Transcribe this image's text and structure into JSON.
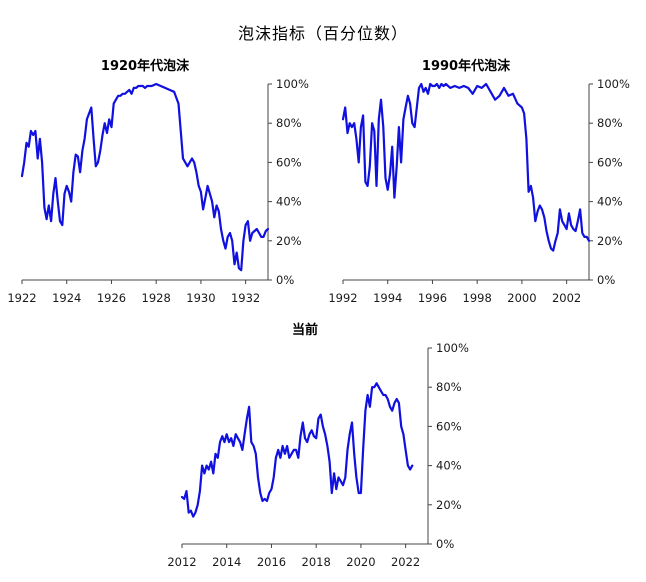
{
  "title": "泡沫指标（百分位数）",
  "colors": {
    "line": "#1010e0",
    "axis": "#444444"
  },
  "chart_data": [
    {
      "type": "line",
      "title": "1920年代泡沫",
      "xlim": [
        1922,
        1933
      ],
      "ylim": [
        0,
        100
      ],
      "x_ticks": [
        1922,
        1924,
        1926,
        1928,
        1930,
        1932
      ],
      "y_ticks": [
        0,
        20,
        40,
        60,
        80,
        100
      ],
      "y_tick_labels": [
        "0%",
        "20%",
        "40%",
        "60%",
        "80%",
        "100%"
      ],
      "series": [
        {
          "x": [
            1922.0,
            1922.1,
            1922.2,
            1922.3,
            1922.4,
            1922.5,
            1922.6,
            1922.7,
            1922.8,
            1922.9,
            1923.0,
            1923.1,
            1923.2,
            1923.3,
            1923.4,
            1923.5,
            1923.6,
            1923.7,
            1923.8,
            1923.9,
            1924.0,
            1924.1,
            1924.2,
            1924.3,
            1924.4,
            1924.5,
            1924.6,
            1924.7,
            1924.8,
            1924.9,
            1925.0,
            1925.1,
            1925.2,
            1925.3,
            1925.4,
            1925.5,
            1925.6,
            1925.7,
            1925.8,
            1925.9,
            1926.0,
            1926.1,
            1926.2,
            1926.3,
            1926.4,
            1926.5,
            1926.6,
            1926.7,
            1926.8,
            1926.9,
            1927.0,
            1927.1,
            1927.2,
            1927.3,
            1927.4,
            1927.5,
            1927.6,
            1927.8,
            1928.0,
            1928.2,
            1928.4,
            1928.6,
            1928.8,
            1929.0,
            1929.2,
            1929.4,
            1929.6,
            1929.7,
            1929.8,
            1929.9,
            1930.0,
            1930.1,
            1930.2,
            1930.3,
            1930.4,
            1930.5,
            1930.6,
            1930.7,
            1930.8,
            1930.9,
            1931.0,
            1931.1,
            1931.2,
            1931.3,
            1931.4,
            1931.5,
            1931.6,
            1931.7,
            1931.8,
            1931.9,
            1932.0,
            1932.1,
            1932.2,
            1932.3,
            1932.4,
            1932.5,
            1932.6,
            1932.7,
            1932.8,
            1932.9,
            1933.0
          ],
          "y": [
            53,
            60,
            70,
            68,
            76,
            74,
            76,
            62,
            72,
            60,
            37,
            31,
            38,
            30,
            44,
            52,
            40,
            30,
            28,
            44,
            48,
            45,
            40,
            55,
            64,
            63,
            55,
            66,
            72,
            82,
            85,
            88,
            72,
            58,
            60,
            66,
            74,
            80,
            75,
            82,
            78,
            90,
            92,
            94,
            94,
            95,
            95,
            96,
            97,
            95,
            98,
            98,
            99,
            99,
            99,
            98,
            99,
            99,
            100,
            99,
            98,
            97,
            96,
            90,
            62,
            58,
            62,
            60,
            55,
            48,
            45,
            36,
            42,
            48,
            44,
            40,
            32,
            38,
            35,
            26,
            20,
            16,
            22,
            24,
            20,
            8,
            14,
            6,
            5,
            20,
            28,
            30,
            20,
            24,
            25,
            26,
            24,
            22,
            22,
            25,
            26
          ],
          "name": ""
        }
      ]
    },
    {
      "type": "line",
      "title": "1990年代泡沫",
      "xlim": [
        1992,
        2003
      ],
      "ylim": [
        0,
        100
      ],
      "x_ticks": [
        1992,
        1994,
        1996,
        1998,
        2000,
        2002
      ],
      "y_ticks": [
        0,
        20,
        40,
        60,
        80,
        100
      ],
      "y_tick_labels": [
        "0%",
        "20%",
        "40%",
        "60%",
        "80%",
        "100%"
      ],
      "series": [
        {
          "x": [
            1992.0,
            1992.1,
            1992.2,
            1992.3,
            1992.4,
            1992.5,
            1992.6,
            1992.7,
            1992.8,
            1992.9,
            1993.0,
            1993.1,
            1993.2,
            1993.3,
            1993.4,
            1993.5,
            1993.6,
            1993.7,
            1993.8,
            1993.9,
            1994.0,
            1994.1,
            1994.2,
            1994.3,
            1994.4,
            1994.5,
            1994.6,
            1994.7,
            1994.8,
            1994.9,
            1995.0,
            1995.1,
            1995.2,
            1995.3,
            1995.4,
            1995.5,
            1995.6,
            1995.7,
            1995.8,
            1995.9,
            1996.0,
            1996.1,
            1996.2,
            1996.3,
            1996.4,
            1996.5,
            1996.6,
            1996.8,
            1997.0,
            1997.2,
            1997.4,
            1997.6,
            1997.8,
            1998.0,
            1998.2,
            1998.4,
            1998.6,
            1998.8,
            1999.0,
            1999.2,
            1999.4,
            1999.6,
            1999.8,
            2000.0,
            2000.1,
            2000.2,
            2000.3,
            2000.4,
            2000.5,
            2000.6,
            2000.7,
            2000.8,
            2000.9,
            2001.0,
            2001.1,
            2001.2,
            2001.3,
            2001.4,
            2001.5,
            2001.6,
            2001.7,
            2001.8,
            2001.9,
            2002.0,
            2002.1,
            2002.2,
            2002.3,
            2002.4,
            2002.5,
            2002.6,
            2002.7,
            2002.8,
            2002.9,
            2003.0
          ],
          "y": [
            82,
            88,
            75,
            80,
            78,
            80,
            72,
            60,
            78,
            84,
            50,
            48,
            58,
            80,
            76,
            48,
            82,
            92,
            78,
            52,
            46,
            54,
            68,
            42,
            58,
            78,
            60,
            82,
            88,
            94,
            90,
            80,
            78,
            88,
            98,
            100,
            96,
            98,
            95,
            100,
            99,
            99,
            100,
            98,
            100,
            99,
            100,
            98,
            99,
            98,
            99,
            98,
            95,
            99,
            98,
            100,
            96,
            92,
            94,
            98,
            94,
            95,
            90,
            88,
            85,
            72,
            45,
            48,
            42,
            30,
            35,
            38,
            36,
            32,
            25,
            20,
            16,
            15,
            20,
            24,
            36,
            30,
            28,
            26,
            34,
            28,
            26,
            25,
            30,
            36,
            24,
            22,
            22,
            20
          ],
          "name": ""
        }
      ]
    },
    {
      "type": "line",
      "title": "当前",
      "xlim": [
        2012,
        2023
      ],
      "ylim": [
        0,
        100
      ],
      "x_ticks": [
        2012,
        2014,
        2016,
        2018,
        2020,
        2022
      ],
      "y_ticks": [
        0,
        20,
        40,
        60,
        80,
        100
      ],
      "y_tick_labels": [
        "0%",
        "20%",
        "40%",
        "60%",
        "80%",
        "100%"
      ],
      "series": [
        {
          "x": [
            2012.0,
            2012.1,
            2012.2,
            2012.3,
            2012.4,
            2012.5,
            2012.6,
            2012.7,
            2012.8,
            2012.9,
            2013.0,
            2013.1,
            2013.2,
            2013.3,
            2013.4,
            2013.5,
            2013.6,
            2013.7,
            2013.8,
            2013.9,
            2014.0,
            2014.1,
            2014.2,
            2014.3,
            2014.4,
            2014.5,
            2014.6,
            2014.7,
            2014.8,
            2014.9,
            2015.0,
            2015.1,
            2015.2,
            2015.3,
            2015.4,
            2015.5,
            2015.6,
            2015.7,
            2015.8,
            2015.9,
            2016.0,
            2016.1,
            2016.2,
            2016.3,
            2016.4,
            2016.5,
            2016.6,
            2016.7,
            2016.8,
            2016.9,
            2017.0,
            2017.1,
            2017.2,
            2017.3,
            2017.4,
            2017.5,
            2017.6,
            2017.7,
            2017.8,
            2017.9,
            2018.0,
            2018.1,
            2018.2,
            2018.3,
            2018.4,
            2018.5,
            2018.6,
            2018.7,
            2018.8,
            2018.9,
            2019.0,
            2019.1,
            2019.2,
            2019.3,
            2019.4,
            2019.5,
            2019.6,
            2019.7,
            2019.8,
            2019.9,
            2020.0,
            2020.1,
            2020.2,
            2020.3,
            2020.4,
            2020.5,
            2020.6,
            2020.7,
            2020.8,
            2020.9,
            2021.0,
            2021.1,
            2021.2,
            2021.3,
            2021.4,
            2021.5,
            2021.6,
            2021.7,
            2021.8,
            2021.9,
            2022.0,
            2022.1,
            2022.2,
            2022.3
          ],
          "y": [
            24,
            23,
            27,
            16,
            17,
            14,
            16,
            20,
            27,
            40,
            36,
            40,
            38,
            42,
            36,
            46,
            44,
            52,
            55,
            52,
            56,
            52,
            54,
            50,
            56,
            54,
            52,
            48,
            56,
            64,
            70,
            52,
            50,
            46,
            34,
            26,
            22,
            23,
            22,
            26,
            28,
            34,
            44,
            48,
            44,
            50,
            46,
            50,
            44,
            46,
            48,
            48,
            44,
            55,
            62,
            54,
            52,
            56,
            58,
            55,
            54,
            64,
            66,
            60,
            56,
            50,
            42,
            26,
            36,
            28,
            34,
            32,
            30,
            34,
            48,
            56,
            62,
            46,
            34,
            26,
            26,
            48,
            68,
            76,
            70,
            80,
            80,
            82,
            80,
            78,
            76,
            76,
            74,
            70,
            68,
            72,
            74,
            72,
            60,
            56,
            48,
            40,
            38,
            40
          ],
          "name": ""
        }
      ]
    }
  ]
}
